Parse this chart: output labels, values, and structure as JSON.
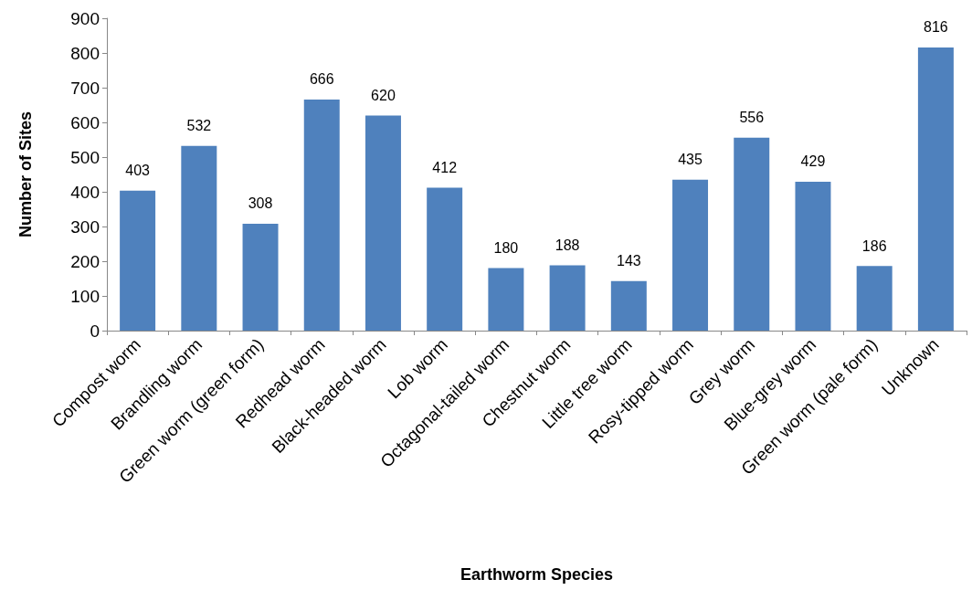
{
  "chart_data": {
    "type": "bar",
    "xlabel": "Earthworm Species",
    "ylabel": "Number of Sites",
    "categories": [
      "Compost worm",
      "Brandling worm",
      "Green worm (green form)",
      "Redhead worm",
      "Black-headed worm",
      "Lob worm",
      "Octagonal-tailed worm",
      "Chestnut worm",
      "Little tree worm",
      "Rosy-tipped worm",
      "Grey worm",
      "Blue-grey worm",
      "Green worm (pale form)",
      "Unknown"
    ],
    "values": [
      403,
      532,
      308,
      666,
      620,
      412,
      180,
      188,
      143,
      435,
      556,
      429,
      186,
      816
    ],
    "color": "#4f81bd",
    "ylim": [
      0,
      900
    ],
    "yticks": [
      0,
      100,
      200,
      300,
      400,
      500,
      600,
      700,
      800,
      900
    ],
    "grid": false,
    "data_labels": true
  }
}
